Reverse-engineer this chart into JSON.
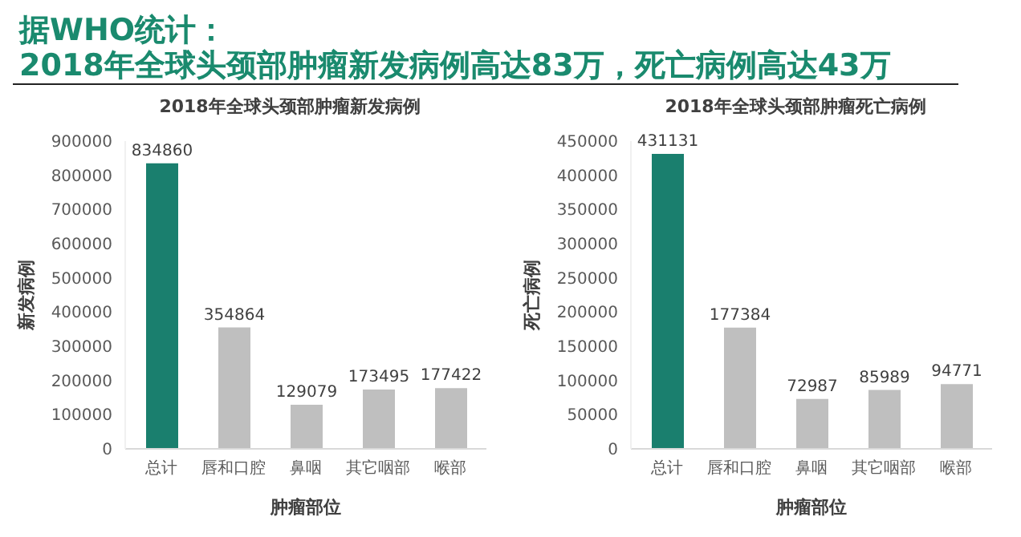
{
  "chart_data": [
    {
      "type": "bar",
      "title": "2018年全球头颈部肿瘤新发病例",
      "annotations": [
        "据WHO统计：",
        "2018年全球头颈部肿瘤新发病例高达83万，死亡病例高达43万"
      ],
      "xlabel": "肿瘤部位",
      "ylabel": "新发病例",
      "categories": [
        "总计",
        "唇和口腔",
        "鼻咽",
        "其它咽部",
        "喉部"
      ],
      "values": [
        834860,
        354864,
        129079,
        173495,
        177422
      ],
      "colors": [
        "#1a7f6e",
        "#bfbfbf",
        "#bfbfbf",
        "#bfbfbf",
        "#bfbfbf"
      ],
      "ylim": [
        0,
        900000
      ],
      "yticks": [
        0,
        100000,
        200000,
        300000,
        400000,
        500000,
        600000,
        700000,
        800000,
        900000
      ],
      "data_labels": true,
      "grid": false,
      "legend": false
    },
    {
      "type": "bar",
      "title": "2018年全球头颈部肿瘤死亡病例",
      "xlabel": "肿瘤部位",
      "ylabel": "死亡病例",
      "categories": [
        "总计",
        "唇和口腔",
        "鼻咽",
        "其它咽部",
        "喉部"
      ],
      "values": [
        431131,
        177384,
        72987,
        85989,
        94771
      ],
      "colors": [
        "#1a7f6e",
        "#bfbfbf",
        "#bfbfbf",
        "#bfbfbf",
        "#bfbfbf"
      ],
      "ylim": [
        0,
        450000
      ],
      "yticks": [
        0,
        50000,
        100000,
        150000,
        200000,
        250000,
        300000,
        350000,
        400000,
        450000
      ],
      "data_labels": true,
      "grid": false,
      "legend": false
    }
  ]
}
